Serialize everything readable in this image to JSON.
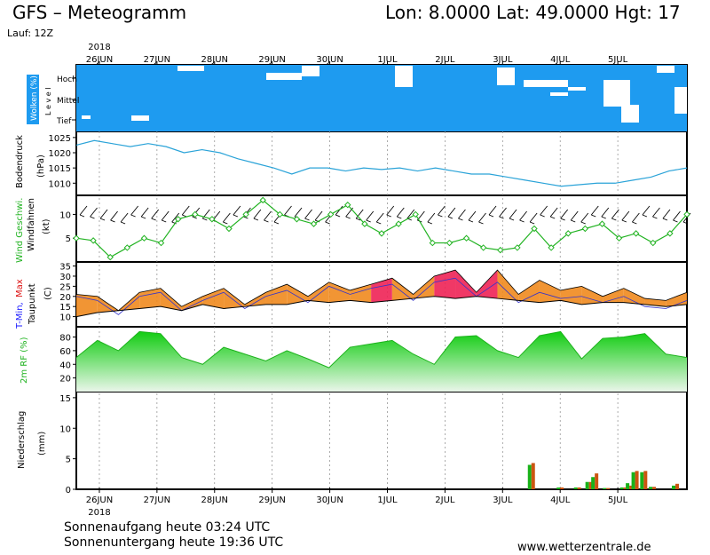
{
  "header": {
    "title": "GFS – Meteogramm",
    "coords": "Lon: 8.0000  Lat: 49.0000  Hgt: 17",
    "run": "Lauf: 12Z"
  },
  "footer": {
    "sunrise": "Sonnenaufgang heute 03:24 UTC",
    "sunset": "Sonnenuntergang heute 19:36 UTC",
    "credit": "www.wetterzentrale.de"
  },
  "colors": {
    "cloud": "#1e9bf0",
    "pressure": "#2aa3d8",
    "wind": "#22b322",
    "rh": "#1db21d",
    "temp_warm": "#f08a1e",
    "temp_hot": "#ee2255",
    "dewpoint": "#000000",
    "precip_conv": "#19b219",
    "precip_large": "#cc5511"
  },
  "chart_data": {
    "type": "line",
    "year": "2018",
    "days": [
      "26JUN",
      "27JUN",
      "28JUN",
      "29JUN",
      "30JUN",
      "1JUL",
      "2JUL",
      "3JUL",
      "4JUL",
      "5JUL"
    ],
    "panels": {
      "cloud": {
        "label": "Wolken (%)",
        "sublabel": "L e v e l",
        "levels": [
          "Hoch",
          "Mittel",
          "Tief"
        ]
      },
      "pressure": {
        "label": "Bodendruck",
        "unit": "(hPa)",
        "ticks": [
          1025,
          1020,
          1015,
          1010
        ],
        "ylim": [
          1006,
          1027
        ],
        "series": [
          {
            "values": [
              1022.5,
              1024,
              1023,
              1022,
              1023,
              1022,
              1020,
              1021,
              1020,
              1018,
              1016.5,
              1015,
              1013,
              1015,
              1015,
              1014,
              1015,
              1014.5,
              1015,
              1014,
              1015,
              1014,
              1013,
              1013,
              1012,
              1011,
              1010,
              1009,
              1009.5,
              1010,
              1010,
              1011,
              1012,
              1014,
              1015
            ]
          }
        ]
      },
      "wind": {
        "label_color": "Wind Geschwi.",
        "label_black": "Windfahnen",
        "unit": "(kt)",
        "ticks": [
          10,
          5
        ],
        "ylim": [
          0,
          14
        ],
        "series": [
          {
            "values": [
              5,
              4.5,
              1,
              3,
              5,
              4,
              9,
              10,
              9,
              7,
              10,
              13,
              10,
              9,
              8,
              10,
              12,
              8,
              6,
              8,
              10,
              4,
              4,
              5,
              3,
              2.5,
              3,
              7,
              3,
              6,
              7,
              8,
              5,
              6,
              4,
              6,
              10
            ]
          }
        ]
      },
      "temperature": {
        "label_tmin": "T-Min,",
        "label_tmax": "Max",
        "label_dew": "Taupunkt",
        "unit": "(C)",
        "ticks": [
          35,
          30,
          25,
          20,
          15,
          10
        ],
        "ylim": [
          5,
          37
        ],
        "series": [
          {
            "name": "T-Max",
            "values": [
              21,
              20,
              13,
              22,
              24,
              15,
              20,
              24,
              16,
              22,
              26,
              20,
              27,
              23,
              26,
              29,
              21,
              30,
              33,
              22,
              33,
              21,
              28,
              23,
              25,
              20,
              24,
              19,
              18,
              22
            ]
          },
          {
            "name": "T-Min",
            "values": [
              20,
              18,
              11,
              20,
              22,
              13,
              18,
              22,
              14,
              20,
              23,
              17,
              25,
              21,
              24,
              26,
              18,
              27,
              29,
              20,
              27,
              17,
              22,
              19,
              20,
              17,
              20,
              15,
              14,
              18
            ]
          },
          {
            "name": "Taupunkt",
            "values": [
              10,
              12,
              13,
              14,
              15,
              13,
              16,
              14,
              15,
              16,
              16,
              18,
              17,
              18,
              17,
              18,
              19,
              20,
              19,
              20,
              19,
              18,
              17,
              18,
              16,
              17,
              17,
              16,
              15,
              16
            ]
          }
        ]
      },
      "rh": {
        "label": "2m RF (%)",
        "ticks": [
          80,
          60,
          40,
          20
        ],
        "ylim": [
          0,
          95
        ],
        "series": [
          {
            "values": [
              50,
              75,
              60,
              88,
              85,
              50,
              40,
              65,
              55,
              45,
              60,
              48,
              35,
              65,
              70,
              75,
              55,
              40,
              80,
              82,
              60,
              50,
              82,
              88,
              48,
              78,
              80,
              85,
              55,
              50
            ]
          }
        ]
      },
      "precip": {
        "label": "Niederschlag",
        "unit": "(mm)",
        "ticks": [
          15,
          10,
          5,
          0
        ],
        "ylim": [
          0,
          16
        ],
        "bars": [
          {
            "day": 7.9,
            "conv": 4.0,
            "large": 4.3
          },
          {
            "day": 8.4,
            "conv": 0.3,
            "large": 0.3
          },
          {
            "day": 8.7,
            "conv": 0.3,
            "large": 0.3
          },
          {
            "day": 8.9,
            "conv": 1.2,
            "large": 1.2
          },
          {
            "day": 9.0,
            "conv": 2.0,
            "large": 2.6
          },
          {
            "day": 9.2,
            "conv": 0.2,
            "large": 0.2
          },
          {
            "day": 9.5,
            "conv": 0.3,
            "large": 0.3
          },
          {
            "day": 9.6,
            "conv": 1.0,
            "large": 0.6
          },
          {
            "day": 9.7,
            "conv": 2.8,
            "large": 3.0
          },
          {
            "day": 9.85,
            "conv": 2.8,
            "large": 3.0
          },
          {
            "day": 10.0,
            "conv": 0.4,
            "large": 0.4
          },
          {
            "day": 10.4,
            "conv": 0.6,
            "large": 0.9
          }
        ]
      }
    }
  }
}
